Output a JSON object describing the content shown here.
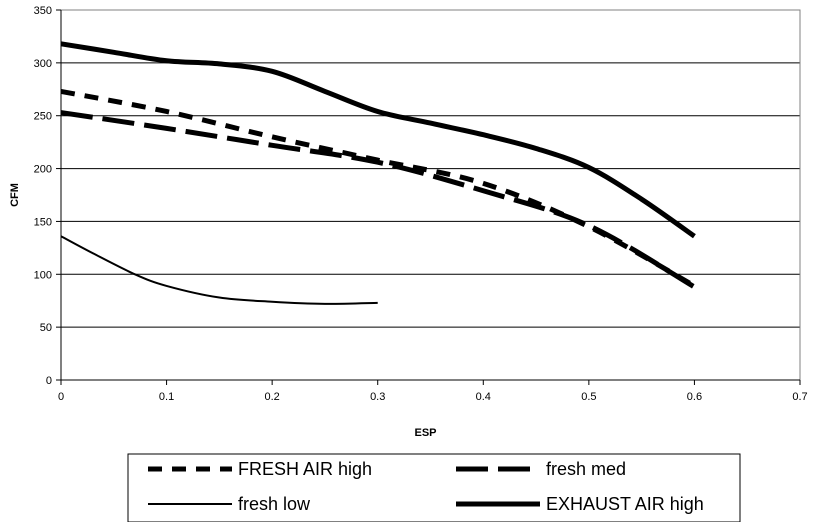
{
  "chart_data": {
    "type": "line",
    "xlabel": "ESP",
    "ylabel": "CFM",
    "xlim": [
      0,
      0.7
    ],
    "ylim": [
      0,
      350
    ],
    "xticks": [
      "0",
      "0.1",
      "0.2",
      "0.3",
      "0.4",
      "0.5",
      "0.6",
      "0.7"
    ],
    "yticks": [
      "0",
      "50",
      "100",
      "150",
      "200",
      "250",
      "300",
      "350"
    ],
    "grid": "horizontal",
    "legend_position": "bottom",
    "series": [
      {
        "name": "FRESH AIR high",
        "style": "short-dash",
        "points": [
          [
            0,
            273
          ],
          [
            0.1,
            254
          ],
          [
            0.2,
            230
          ],
          [
            0.3,
            208
          ],
          [
            0.4,
            186
          ],
          [
            0.5,
            145
          ],
          [
            0.6,
            89
          ]
        ]
      },
      {
        "name": "fresh med",
        "style": "long-dash",
        "points": [
          [
            0,
            253
          ],
          [
            0.1,
            238
          ],
          [
            0.2,
            222
          ],
          [
            0.3,
            206
          ],
          [
            0.4,
            179
          ],
          [
            0.5,
            146
          ],
          [
            0.6,
            88
          ]
        ]
      },
      {
        "name": "fresh low",
        "style": "thin-solid",
        "points": [
          [
            0,
            136
          ],
          [
            0.03,
            120
          ],
          [
            0.07,
            100
          ],
          [
            0.1,
            89
          ],
          [
            0.15,
            78
          ],
          [
            0.2,
            74
          ],
          [
            0.25,
            72
          ],
          [
            0.3,
            73
          ]
        ]
      },
      {
        "name": "EXHAUST AIR high",
        "style": "thick-solid",
        "points": [
          [
            0,
            318
          ],
          [
            0.05,
            310
          ],
          [
            0.1,
            302
          ],
          [
            0.15,
            299
          ],
          [
            0.2,
            292
          ],
          [
            0.25,
            273
          ],
          [
            0.3,
            254
          ],
          [
            0.35,
            243
          ],
          [
            0.4,
            232
          ],
          [
            0.45,
            219
          ],
          [
            0.5,
            201
          ],
          [
            0.55,
            171
          ],
          [
            0.6,
            136
          ]
        ]
      }
    ]
  }
}
